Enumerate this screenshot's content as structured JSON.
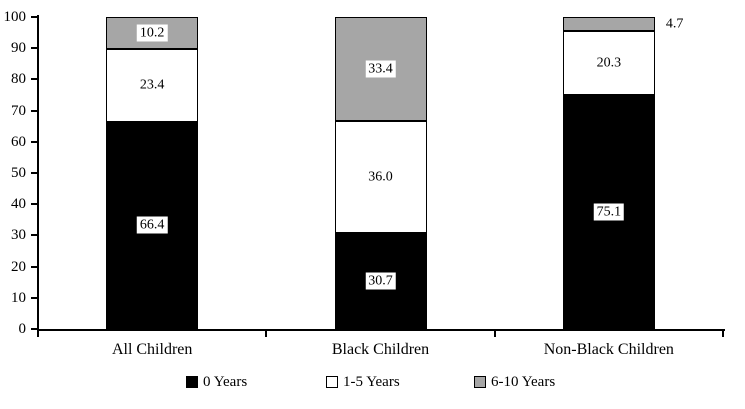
{
  "chart_data": {
    "type": "bar",
    "stacked": true,
    "title": "",
    "xlabel": "",
    "ylabel": "",
    "categories": [
      "All Children",
      "Black Children",
      "Non-Black Children"
    ],
    "series": [
      {
        "name": "0 Years",
        "color": "#000000",
        "values": [
          66.4,
          30.7,
          75.1
        ]
      },
      {
        "name": "1-5 Years",
        "color": "#FFFFFF",
        "values": [
          23.4,
          36.0,
          20.3
        ]
      },
      {
        "name": "6-10 Years",
        "color": "#A6A6A6",
        "values": [
          10.2,
          33.4,
          4.7
        ]
      }
    ],
    "ylim": [
      0,
      100
    ],
    "yticks": [
      0,
      10,
      20,
      30,
      40,
      50,
      60,
      70,
      80,
      90,
      100
    ],
    "legend_position": "bottom",
    "grid": false,
    "axis_color": "#000000",
    "background_color": "#FFFFFF"
  },
  "legend": {
    "items": [
      "0 Years",
      "1-5 Years",
      "6-10 Years"
    ]
  }
}
